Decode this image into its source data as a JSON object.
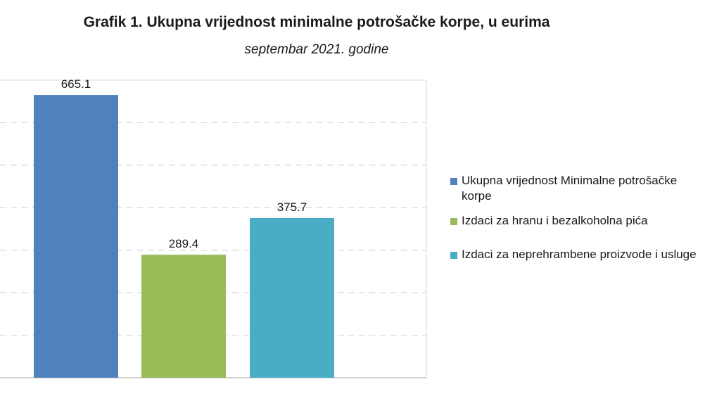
{
  "chart_data": {
    "type": "bar",
    "title": "Grafik 1. Ukupna vrijednost minimalne potrošačke korpe, u eurima",
    "subtitle": "septembar 2021. godine",
    "categories": [
      "Ukupna vrijednost Minimalne potrošačke korpe",
      "Izdaci za hranu i bezalkoholna pića",
      "Izdaci za neprehrambene proizvode i usluge"
    ],
    "values": [
      665.1,
      289.4,
      375.7
    ],
    "value_labels": [
      "665.1",
      "289.4",
      "375.7"
    ],
    "colors": [
      "#4f81bd",
      "#9bbb59",
      "#4bacc6"
    ],
    "ylim": [
      0,
      700
    ],
    "grid": true,
    "legend_position": "right"
  }
}
